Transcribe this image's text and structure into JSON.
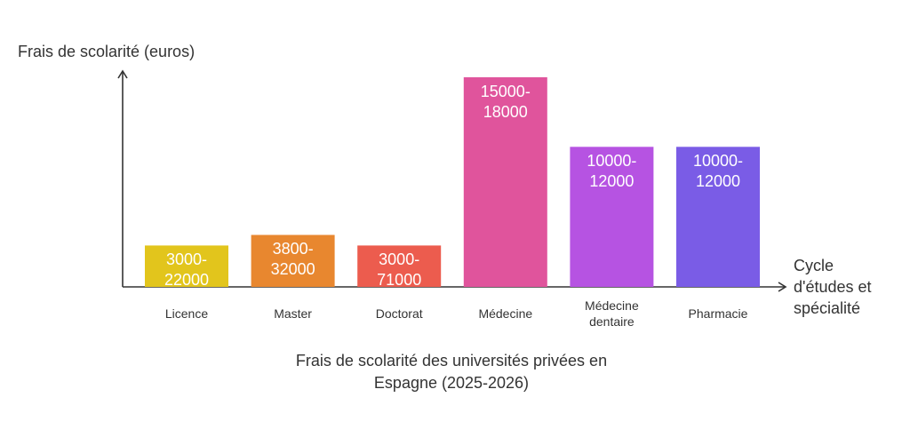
{
  "chart_data": {
    "type": "bar",
    "title": "Frais de scolarité des universités privées en Espagne (2025-2026)",
    "y_label": "Frais de scolarité (euros)",
    "x_label": "Cycle d'études et spécialité",
    "categories": [
      "Licence",
      "Master",
      "Doctorat",
      "Médecine",
      "Médecine dentaire",
      "Pharmacie"
    ],
    "values": [
      47,
      59,
      47,
      238,
      159,
      159
    ],
    "bar_texts": [
      "3000-22000",
      "3800-32000",
      "3000-71000",
      "15000-18000",
      "10000-12000",
      "10000-12000"
    ],
    "colors": [
      "#e2c51c",
      "#e8872f",
      "#ec5c4e",
      "#e0549c",
      "#b653e2",
      "#7a5ce6"
    ],
    "ylim": [
      0,
      240
    ]
  }
}
